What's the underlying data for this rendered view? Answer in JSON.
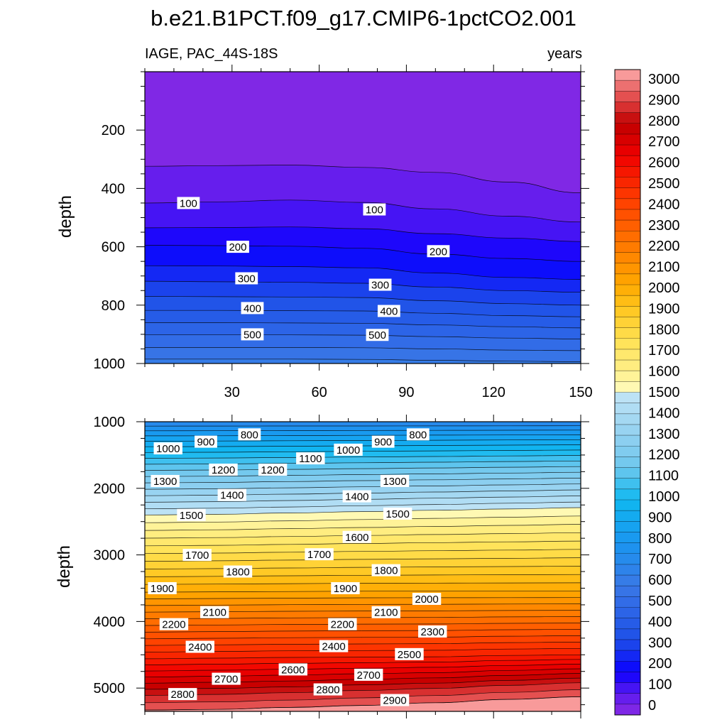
{
  "title": "b.e21.B1PCT.f09_g17.CMIP6-1pctCO2.001",
  "chart_data": [
    {
      "type": "contour",
      "panel": "top",
      "left_label": "IAGE, PAC_44S-18S",
      "right_label": "years",
      "xlabel": "",
      "ylabel": "depth",
      "xlim": [
        0,
        150
      ],
      "ylim": [
        0,
        1000
      ],
      "y_reversed": true,
      "xticks": [
        30,
        60,
        90,
        120,
        150
      ],
      "yticks": [
        200,
        400,
        600,
        800,
        1000
      ],
      "contour_interval": 50,
      "contour_depths": [
        {
          "level": 50,
          "depths": [
            324,
            322,
            320,
            328,
            345,
            378,
            415
          ]
        },
        {
          "level": 100,
          "depths": [
            450,
            446,
            440,
            448,
            470,
            495,
            515
          ]
        },
        {
          "level": 150,
          "depths": [
            535,
            534,
            532,
            538,
            555,
            570,
            582
          ]
        },
        {
          "level": 200,
          "depths": [
            595,
            596,
            598,
            605,
            625,
            640,
            650
          ]
        },
        {
          "level": 250,
          "depths": [
            665,
            666,
            668,
            672,
            690,
            705,
            712
          ]
        },
        {
          "level": 300,
          "depths": [
            718,
            720,
            722,
            725,
            738,
            750,
            756
          ]
        },
        {
          "level": 350,
          "depths": [
            770,
            771,
            772,
            774,
            785,
            795,
            800
          ]
        },
        {
          "level": 400,
          "depths": [
            818,
            818,
            819,
            820,
            828,
            836,
            840
          ]
        },
        {
          "level": 450,
          "depths": [
            860,
            860,
            861,
            862,
            868,
            874,
            878
          ]
        },
        {
          "level": 500,
          "depths": [
            902,
            902,
            902,
            903,
            908,
            913,
            916
          ]
        },
        {
          "level": 550,
          "depths": [
            945,
            945,
            945,
            946,
            950,
            954,
            956
          ]
        },
        {
          "level": 600,
          "depths": [
            985,
            985,
            985,
            986,
            989,
            992,
            994
          ]
        }
      ],
      "contour_labels": [
        {
          "text": "100",
          "x": 15,
          "depth": 450
        },
        {
          "text": "100",
          "x": 79,
          "depth": 472
        },
        {
          "text": "200",
          "x": 32,
          "depth": 600
        },
        {
          "text": "200",
          "x": 101,
          "depth": 615
        },
        {
          "text": "300",
          "x": 35,
          "depth": 708
        },
        {
          "text": "300",
          "x": 81,
          "depth": 730
        },
        {
          "text": "400",
          "x": 37,
          "depth": 810
        },
        {
          "text": "400",
          "x": 84,
          "depth": 820
        },
        {
          "text": "500",
          "x": 37,
          "depth": 900
        },
        {
          "text": "500",
          "x": 80,
          "depth": 902
        }
      ]
    },
    {
      "type": "contour",
      "panel": "bottom",
      "xlabel": "",
      "ylabel": "depth",
      "xlim": [
        0,
        150
      ],
      "ylim": [
        1000,
        5350
      ],
      "y_reversed": true,
      "yticks": [
        1000,
        2000,
        3000,
        4000,
        5000
      ],
      "contour_interval": 50,
      "contour_depths": [
        {
          "level": 1500,
          "depths": [
            2400,
            2390,
            2370,
            2350,
            2330,
            2310,
            2290
          ]
        },
        {
          "level": 2000,
          "depths": [
            3560,
            3555,
            3550,
            3545,
            3545,
            3545,
            3545
          ]
        },
        {
          "level": 2500,
          "depths": [
            4560,
            4550,
            4540,
            4535,
            4530,
            4510,
            4500
          ]
        },
        {
          "level": 2800,
          "depths": [
            5110,
            5095,
            5070,
            5035,
            5005,
            4960,
            4920
          ]
        },
        {
          "level": 2900,
          "depths": [
            5330,
            5320,
            5290,
            5260,
            5220,
            5170,
            5130
          ]
        }
      ],
      "contour_labels": [
        {
          "text": "800",
          "x": 36,
          "depth": 1190
        },
        {
          "text": "800",
          "x": 94,
          "depth": 1190
        },
        {
          "text": "900",
          "x": 21,
          "depth": 1300
        },
        {
          "text": "900",
          "x": 82,
          "depth": 1300
        },
        {
          "text": "1000",
          "x": 8,
          "depth": 1400
        },
        {
          "text": "1000",
          "x": 70,
          "depth": 1420
        },
        {
          "text": "1100",
          "x": 57,
          "depth": 1550
        },
        {
          "text": "1200",
          "x": 27,
          "depth": 1720
        },
        {
          "text": "1200",
          "x": 44,
          "depth": 1720
        },
        {
          "text": "1300",
          "x": 7,
          "depth": 1890
        },
        {
          "text": "1300",
          "x": 86,
          "depth": 1890
        },
        {
          "text": "1400",
          "x": 30,
          "depth": 2100
        },
        {
          "text": "1400",
          "x": 73,
          "depth": 2120
        },
        {
          "text": "1500",
          "x": 16,
          "depth": 2400
        },
        {
          "text": "1500",
          "x": 87,
          "depth": 2380
        },
        {
          "text": "1600",
          "x": 73,
          "depth": 2730
        },
        {
          "text": "1700",
          "x": 18,
          "depth": 3000
        },
        {
          "text": "1700",
          "x": 60,
          "depth": 2990
        },
        {
          "text": "1800",
          "x": 32,
          "depth": 3250
        },
        {
          "text": "1800",
          "x": 83,
          "depth": 3230
        },
        {
          "text": "1900",
          "x": 6,
          "depth": 3500
        },
        {
          "text": "1900",
          "x": 69,
          "depth": 3500
        },
        {
          "text": "2000",
          "x": 97,
          "depth": 3660
        },
        {
          "text": "2100",
          "x": 24,
          "depth": 3860
        },
        {
          "text": "2100",
          "x": 83,
          "depth": 3860
        },
        {
          "text": "2200",
          "x": 10,
          "depth": 4040
        },
        {
          "text": "2200",
          "x": 68,
          "depth": 4040
        },
        {
          "text": "2300",
          "x": 99,
          "depth": 4150
        },
        {
          "text": "2400",
          "x": 19,
          "depth": 4380
        },
        {
          "text": "2400",
          "x": 65,
          "depth": 4370
        },
        {
          "text": "2500",
          "x": 91,
          "depth": 4490
        },
        {
          "text": "2600",
          "x": 51,
          "depth": 4720
        },
        {
          "text": "2700",
          "x": 28,
          "depth": 4860
        },
        {
          "text": "2700",
          "x": 77,
          "depth": 4800
        },
        {
          "text": "2800",
          "x": 13,
          "depth": 5090
        },
        {
          "text": "2800",
          "x": 63,
          "depth": 5020
        },
        {
          "text": "2900",
          "x": 86,
          "depth": 5180
        }
      ]
    }
  ],
  "colorbar": {
    "labels": [
      "3000",
      "2900",
      "2800",
      "2700",
      "2600",
      "2500",
      "2400",
      "2300",
      "2200",
      "2100",
      "2000",
      "1900",
      "1800",
      "1700",
      "1600",
      "1500",
      "1400",
      "1300",
      "1200",
      "1100",
      "1000",
      "900",
      "800",
      "700",
      "600",
      "500",
      "400",
      "300",
      "200",
      "100",
      "0"
    ],
    "palette_stops": [
      {
        "value": 0,
        "color": "#8a2be2"
      },
      {
        "value": 100,
        "color": "#5a1af0"
      },
      {
        "value": 200,
        "color": "#0a00ff"
      },
      {
        "value": 350,
        "color": "#1e50e8"
      },
      {
        "value": 600,
        "color": "#3a78e6"
      },
      {
        "value": 800,
        "color": "#1a96f0"
      },
      {
        "value": 1000,
        "color": "#10b8f0"
      },
      {
        "value": 1150,
        "color": "#6ec8ee"
      },
      {
        "value": 1300,
        "color": "#92d0f0"
      },
      {
        "value": 1499,
        "color": "#c2e4f6"
      },
      {
        "value": 1500,
        "color": "#fffcc0"
      },
      {
        "value": 1600,
        "color": "#fff08a"
      },
      {
        "value": 1750,
        "color": "#ffe050"
      },
      {
        "value": 1900,
        "color": "#ffc41c"
      },
      {
        "value": 2000,
        "color": "#ffa800"
      },
      {
        "value": 2200,
        "color": "#ff7400"
      },
      {
        "value": 2400,
        "color": "#ff3c00"
      },
      {
        "value": 2600,
        "color": "#f00000"
      },
      {
        "value": 2750,
        "color": "#c00000"
      },
      {
        "value": 2850,
        "color": "#e04040"
      },
      {
        "value": 2950,
        "color": "#f08080"
      },
      {
        "value": 3000,
        "color": "#ffb4b4"
      }
    ]
  }
}
